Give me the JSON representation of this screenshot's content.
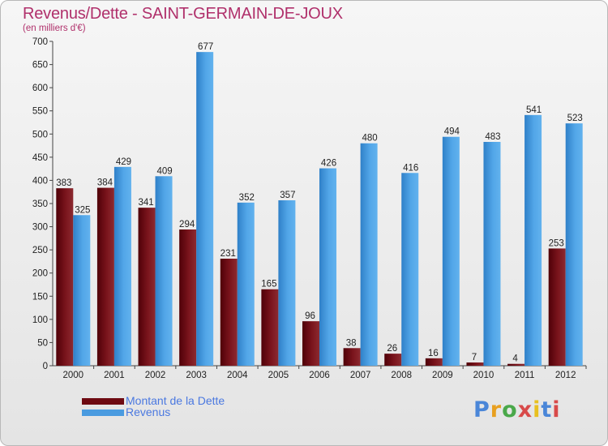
{
  "header": {
    "title": "Revenus/Dette - SAINT-GERMAIN-DE-JOUX",
    "subtitle": "(en milliers d'€)"
  },
  "logo": {
    "text": "Proxiti",
    "colors": [
      "#4a86d8",
      "#e8a020",
      "#4aa84a",
      "#d84a4a",
      "#e8c020",
      "#4a86d8",
      "#d84a4a"
    ]
  },
  "legend": {
    "items": [
      {
        "label": "Montant de la Dette",
        "color": "#6e0a12"
      },
      {
        "label": "Revenus",
        "color": "#4a9be0"
      }
    ]
  },
  "chart_data": {
    "type": "bar",
    "title": "Revenus/Dette - SAINT-GERMAIN-DE-JOUX",
    "subtitle": "(en milliers d'€)",
    "categories": [
      "2000",
      "2001",
      "2002",
      "2003",
      "2004",
      "2005",
      "2006",
      "2007",
      "2008",
      "2009",
      "2010",
      "2011",
      "2012"
    ],
    "series": [
      {
        "name": "Montant de la Dette",
        "color": "#6e0a12",
        "values": [
          383,
          384,
          341,
          294,
          231,
          165,
          96,
          38,
          26,
          16,
          7,
          4,
          253
        ]
      },
      {
        "name": "Revenus",
        "color": "#4a9be0",
        "values": [
          325,
          429,
          409,
          677,
          352,
          357,
          426,
          480,
          416,
          494,
          483,
          541,
          523
        ]
      }
    ],
    "yticks": [
      0,
      50,
      100,
      150,
      200,
      250,
      300,
      350,
      400,
      450,
      500,
      550,
      600,
      650,
      700
    ],
    "ylim": [
      0,
      700
    ],
    "grid": false,
    "legend_position": "bottom-left"
  }
}
